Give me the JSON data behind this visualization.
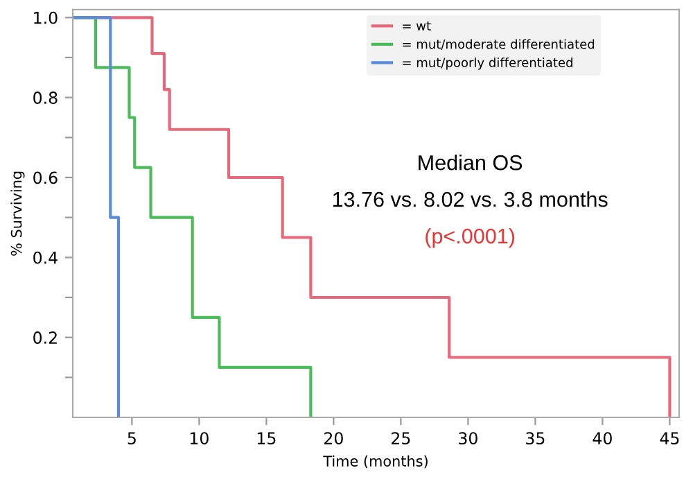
{
  "chart_data": {
    "type": "step",
    "xlabel": "Time (months)",
    "ylabel": "% Surviving",
    "xlim": [
      0.6,
      45.7
    ],
    "xticks": [
      5,
      10,
      15,
      20,
      25,
      30,
      35,
      40,
      45
    ],
    "ylim": [
      0,
      1.02
    ],
    "yticks": [
      {
        "value": 0.1,
        "label": null
      },
      0.2,
      {
        "value": 0.3,
        "label": null
      },
      0.4,
      {
        "value": 0.5,
        "label": null
      },
      0.6,
      {
        "value": 0.7,
        "label": null
      },
      0.8,
      {
        "value": 0.9,
        "label": null
      },
      {
        "value": 1.0,
        "label": "1.0"
      }
    ],
    "grid": false,
    "legend": "top right",
    "series": [
      {
        "name": "= wt",
        "color": "#e8677a",
        "x": [
          0.6,
          6.5,
          7.4,
          7.8,
          12.2,
          16.2,
          18.3,
          28.6,
          45
        ],
        "values": [
          1.0,
          0.91,
          0.82,
          0.72,
          0.6,
          0.45,
          0.3,
          0.15,
          0
        ]
      },
      {
        "name": "= mut/moderate differentiated",
        "color": "#4cbb5a",
        "x": [
          0.6,
          2.3,
          4.8,
          5.2,
          6.4,
          9.5,
          11.5,
          18.3
        ],
        "values": [
          1.0,
          0.875,
          0.75,
          0.625,
          0.5,
          0.25,
          0.125,
          0
        ]
      },
      {
        "name": "= mut/poorly differentiated",
        "color": "#5b8bd9",
        "x": [
          0.6,
          3.4,
          4.0
        ],
        "values": [
          1.0,
          0.5,
          0
        ]
      }
    ],
    "annotations": [
      "Median OS",
      "13.76 vs. 8.02 vs. 3.8 months",
      "(p<.0001)"
    ]
  }
}
